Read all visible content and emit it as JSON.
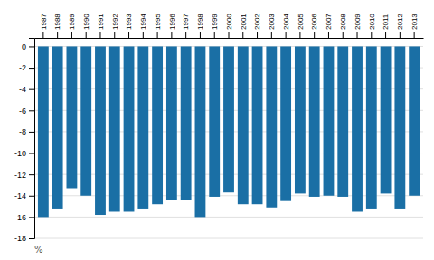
{
  "chart_data": {
    "type": "bar",
    "categories": [
      1987,
      1988,
      1989,
      1990,
      1991,
      1992,
      1993,
      1994,
      1995,
      1996,
      1997,
      1998,
      1999,
      2000,
      2001,
      2002,
      2003,
      2004,
      2005,
      2006,
      2007,
      2008,
      2009,
      2010,
      2011,
      2012,
      2013
    ],
    "values": [
      -16.0,
      -15.2,
      -13.3,
      -14.0,
      -15.8,
      -15.5,
      -15.5,
      -15.2,
      -14.8,
      -14.4,
      -14.4,
      -16.0,
      -14.1,
      -13.7,
      -14.8,
      -14.8,
      -15.1,
      -14.5,
      -13.8,
      -14.1,
      -14.0,
      -14.1,
      -15.5,
      -15.2,
      -13.8,
      -15.2,
      -14.0
    ],
    "color": "#1a6fa5",
    "ylim": [
      -18,
      0.8
    ],
    "yticks": [
      0,
      -2,
      -4,
      -6,
      -8,
      -10,
      -12,
      -14,
      -16,
      -18
    ],
    "grid": true,
    "annotations": [
      "%"
    ]
  }
}
